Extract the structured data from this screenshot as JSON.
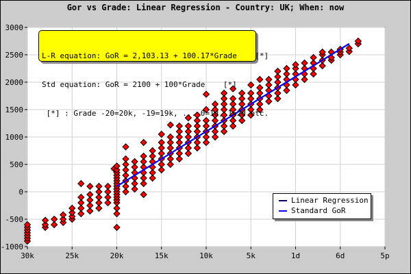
{
  "title": "Gor vs Grade: Linear Regression - Country: UK; When: now",
  "annotation": {
    "line1": "L-R equation: GoR = 2,103.13 + 100.17*Grade    [*]",
    "line2": "Std equation: GoR = 2100 + 100*Grade    [*]",
    "line3": " [*] : Grade -20=20k, -19=19k, ... 0=1d, 1=2d etc."
  },
  "legend": {
    "items": [
      {
        "label": "Linear Regression",
        "color": "#000066"
      },
      {
        "label": "Standard GoR",
        "color": "#0000ff"
      }
    ]
  },
  "colors": {
    "point_fill": "#ff0000",
    "point_stroke": "#000000",
    "regression_line": "#000066",
    "standard_line": "#0000ff",
    "grid": "#d0d0d0",
    "plot_background": "#ffffff",
    "page_background": "#cccccc"
  },
  "chart_data": {
    "type": "scatter",
    "title": "Gor vs Grade: Linear Regression - Country: UK; When: now",
    "xlabel": "",
    "ylabel": "",
    "xlim": [
      -30,
      10
    ],
    "ylim": [
      -1000,
      3000
    ],
    "x_ticks": [
      -30,
      -25,
      -20,
      -15,
      -10,
      -5,
      0,
      5,
      10
    ],
    "x_tick_labels": [
      "30k",
      "25k",
      "20k",
      "15k",
      "10k",
      "5k",
      "1d",
      "6d",
      "5p"
    ],
    "y_ticks": [
      -1000,
      -500,
      0,
      500,
      1000,
      1500,
      2000,
      2500,
      3000
    ],
    "y_tick_labels": [
      "-1000",
      "-500",
      "0",
      "500",
      "1000",
      "1500",
      "2000",
      "2500",
      "3000"
    ],
    "grid": true,
    "legend_position": "bottom-right",
    "series": [
      {
        "name": "Linear Regression",
        "kind": "line",
        "x": [
          -20,
          6
        ],
        "y": [
          100,
          2704
        ]
      },
      {
        "name": "Standard GoR",
        "kind": "line",
        "x": [
          -20,
          6
        ],
        "y": [
          100,
          2700
        ]
      },
      {
        "kind": "points",
        "points": [
          [
            -30,
            -900
          ],
          [
            -30,
            -850
          ],
          [
            -30,
            -800
          ],
          [
            -30,
            -750
          ],
          [
            -30,
            -700
          ],
          [
            -30,
            -650
          ],
          [
            -30,
            -600
          ],
          [
            -28,
            -650
          ],
          [
            -28,
            -600
          ],
          [
            -28,
            -520
          ],
          [
            -27,
            -600
          ],
          [
            -27,
            -500
          ],
          [
            -26,
            -560
          ],
          [
            -26,
            -500
          ],
          [
            -26,
            -420
          ],
          [
            -25,
            -500
          ],
          [
            -25,
            -450
          ],
          [
            -25,
            -380
          ],
          [
            -25,
            -300
          ],
          [
            -24,
            -400
          ],
          [
            -24,
            -300
          ],
          [
            -24,
            -200
          ],
          [
            -24,
            -100
          ],
          [
            -24,
            150
          ],
          [
            -23,
            -350
          ],
          [
            -23,
            -250
          ],
          [
            -23,
            -150
          ],
          [
            -23,
            -50
          ],
          [
            -23,
            100
          ],
          [
            -22,
            -300
          ],
          [
            -22,
            -200
          ],
          [
            -22,
            -100
          ],
          [
            -22,
            0
          ],
          [
            -22,
            100
          ],
          [
            -21,
            -200
          ],
          [
            -21,
            -100
          ],
          [
            -21,
            0
          ],
          [
            -21,
            100
          ],
          [
            -20.3,
            420
          ],
          [
            -20,
            -650
          ],
          [
            -20,
            -400
          ],
          [
            -20,
            -300
          ],
          [
            -20,
            -200
          ],
          [
            -20,
            -150
          ],
          [
            -20,
            -100
          ],
          [
            -20,
            -50
          ],
          [
            -20,
            0
          ],
          [
            -20,
            50
          ],
          [
            -20,
            100
          ],
          [
            -20,
            150
          ],
          [
            -20,
            200
          ],
          [
            -20,
            250
          ],
          [
            -20,
            300
          ],
          [
            -20,
            350
          ],
          [
            -20,
            400
          ],
          [
            -20,
            470
          ],
          [
            -19,
            0
          ],
          [
            -19,
            100
          ],
          [
            -19,
            200
          ],
          [
            -19,
            300
          ],
          [
            -19,
            400
          ],
          [
            -19,
            500
          ],
          [
            -19,
            600
          ],
          [
            -19,
            820
          ],
          [
            -18,
            50
          ],
          [
            -18,
            150
          ],
          [
            -18,
            250
          ],
          [
            -18,
            350
          ],
          [
            -18,
            450
          ],
          [
            -18,
            550
          ],
          [
            -17,
            -50
          ],
          [
            -17,
            150
          ],
          [
            -17,
            250
          ],
          [
            -17,
            350
          ],
          [
            -17,
            450
          ],
          [
            -17,
            550
          ],
          [
            -17,
            650
          ],
          [
            -17,
            900
          ],
          [
            -16,
            250
          ],
          [
            -16,
            350
          ],
          [
            -16,
            450
          ],
          [
            -16,
            550
          ],
          [
            -16,
            650
          ],
          [
            -16,
            750
          ],
          [
            -15,
            400
          ],
          [
            -15,
            500
          ],
          [
            -15,
            600
          ],
          [
            -15,
            700
          ],
          [
            -15,
            800
          ],
          [
            -15,
            900
          ],
          [
            -15,
            1050
          ],
          [
            -14,
            500
          ],
          [
            -14,
            600
          ],
          [
            -14,
            700
          ],
          [
            -14,
            800
          ],
          [
            -14,
            900
          ],
          [
            -14,
            1000
          ],
          [
            -14,
            1220
          ],
          [
            -13,
            600
          ],
          [
            -13,
            700
          ],
          [
            -13,
            800
          ],
          [
            -13,
            900
          ],
          [
            -13,
            1000
          ],
          [
            -13,
            1100
          ],
          [
            -13,
            1200
          ],
          [
            -12,
            700
          ],
          [
            -12,
            800
          ],
          [
            -12,
            900
          ],
          [
            -12,
            1000
          ],
          [
            -12,
            1100
          ],
          [
            -12,
            1200
          ],
          [
            -12,
            1350
          ],
          [
            -11,
            800
          ],
          [
            -11,
            900
          ],
          [
            -11,
            1000
          ],
          [
            -11,
            1100
          ],
          [
            -11,
            1200
          ],
          [
            -11,
            1300
          ],
          [
            -11,
            1400
          ],
          [
            -10,
            900
          ],
          [
            -10,
            1000
          ],
          [
            -10,
            1100
          ],
          [
            -10,
            1200
          ],
          [
            -10,
            1300
          ],
          [
            -10,
            1500
          ],
          [
            -10,
            1780
          ],
          [
            -9,
            1000
          ],
          [
            -9,
            1100
          ],
          [
            -9,
            1200
          ],
          [
            -9,
            1300
          ],
          [
            -9,
            1400
          ],
          [
            -9,
            1500
          ],
          [
            -9,
            1600
          ],
          [
            -8,
            1100
          ],
          [
            -8,
            1200
          ],
          [
            -8,
            1300
          ],
          [
            -8,
            1400
          ],
          [
            -8,
            1500
          ],
          [
            -8,
            1600
          ],
          [
            -8,
            1700
          ],
          [
            -8,
            1800
          ],
          [
            -7,
            1200
          ],
          [
            -7,
            1300
          ],
          [
            -7,
            1400
          ],
          [
            -7,
            1500
          ],
          [
            -7,
            1600
          ],
          [
            -7,
            1700
          ],
          [
            -7,
            1880
          ],
          [
            -6,
            1300
          ],
          [
            -6,
            1400
          ],
          [
            -6,
            1500
          ],
          [
            -6,
            1600
          ],
          [
            -6,
            1700
          ],
          [
            -6,
            1800
          ],
          [
            -5,
            1400
          ],
          [
            -5,
            1500
          ],
          [
            -5,
            1600
          ],
          [
            -5,
            1700
          ],
          [
            -5,
            1800
          ],
          [
            -5,
            1950
          ],
          [
            -4,
            1500
          ],
          [
            -4,
            1600
          ],
          [
            -4,
            1700
          ],
          [
            -4,
            1800
          ],
          [
            -4,
            1900
          ],
          [
            -4,
            2050
          ],
          [
            -3,
            1650
          ],
          [
            -3,
            1750
          ],
          [
            -3,
            1850
          ],
          [
            -3,
            1950
          ],
          [
            -3,
            2050
          ],
          [
            -2,
            1700
          ],
          [
            -2,
            1800
          ],
          [
            -2,
            1900
          ],
          [
            -2,
            2000
          ],
          [
            -2,
            2100
          ],
          [
            -2,
            2200
          ],
          [
            -1,
            1850
          ],
          [
            -1,
            1950
          ],
          [
            -1,
            2050
          ],
          [
            -1,
            2150
          ],
          [
            -1,
            2250
          ],
          [
            0,
            1950
          ],
          [
            0,
            2050
          ],
          [
            0,
            2150
          ],
          [
            0,
            2250
          ],
          [
            0,
            2320
          ],
          [
            1,
            2050
          ],
          [
            1,
            2150
          ],
          [
            1,
            2250
          ],
          [
            1,
            2350
          ],
          [
            2,
            2150
          ],
          [
            2,
            2250
          ],
          [
            2,
            2350
          ],
          [
            2,
            2450
          ],
          [
            3,
            2300
          ],
          [
            3,
            2400
          ],
          [
            3,
            2500
          ],
          [
            3,
            2550
          ],
          [
            4,
            2400
          ],
          [
            4,
            2450
          ],
          [
            4,
            2550
          ],
          [
            5,
            2500
          ],
          [
            5,
            2550
          ],
          [
            5,
            2600
          ],
          [
            6,
            2560
          ],
          [
            6,
            2620
          ],
          [
            7,
            2700
          ],
          [
            7,
            2750
          ]
        ]
      }
    ]
  }
}
